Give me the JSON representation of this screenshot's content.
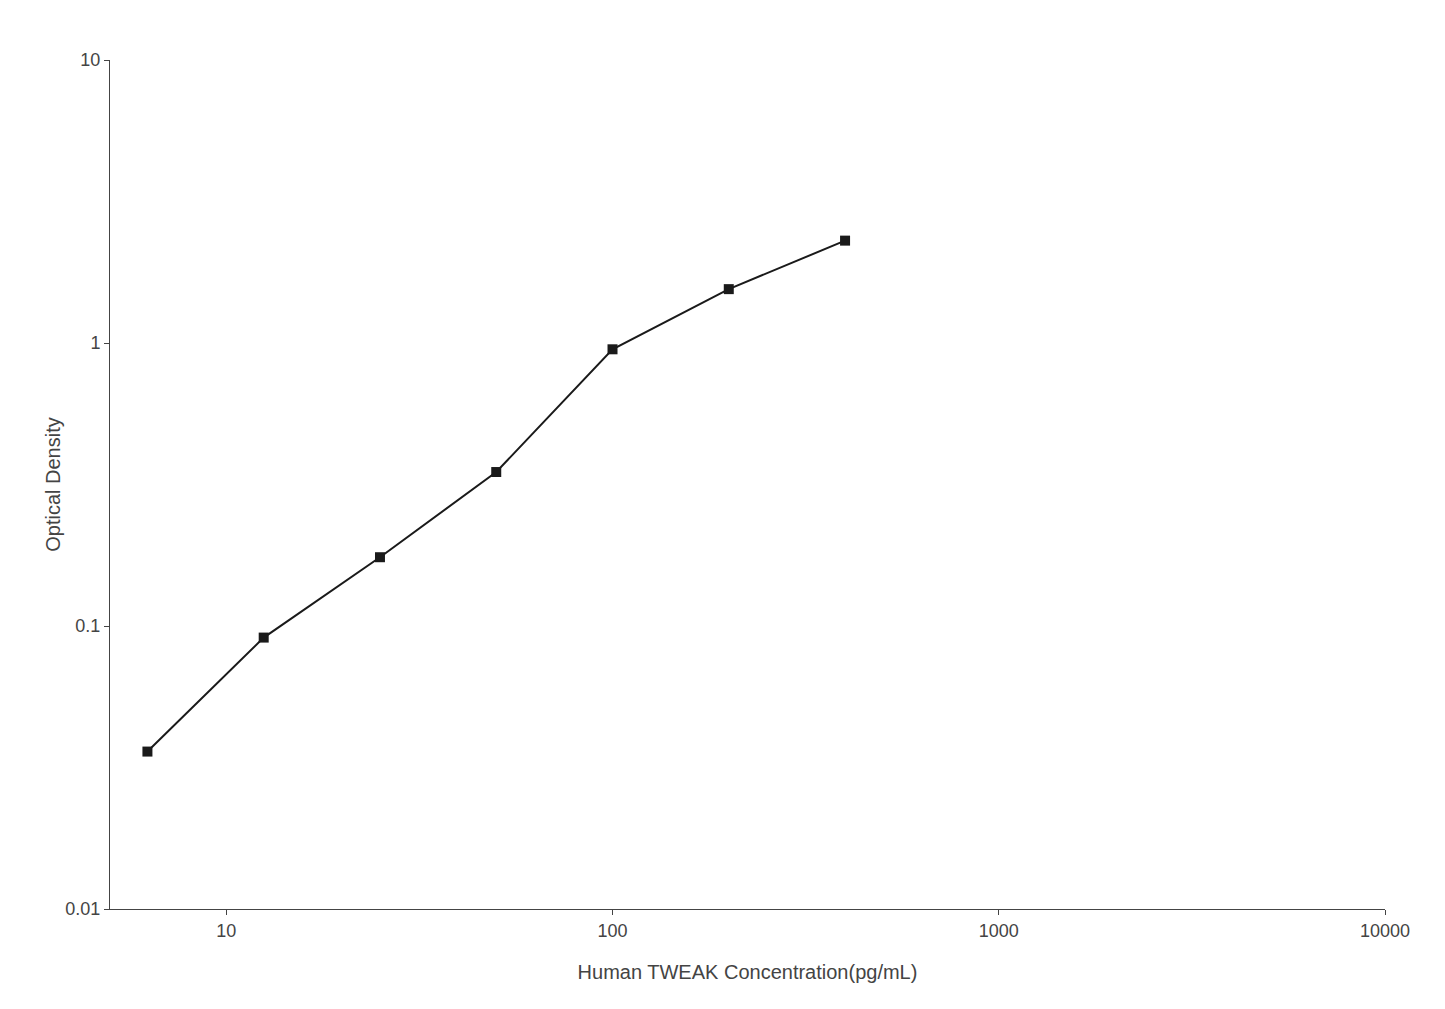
{
  "chart_data": {
    "type": "line",
    "x": [
      6.25,
      12.5,
      25,
      50,
      100,
      200,
      400
    ],
    "values": [
      0.036,
      0.091,
      0.175,
      0.35,
      0.95,
      1.55,
      2.3
    ],
    "xlabel": "Human TWEAK Concentration(pg/mL)",
    "ylabel": "Optical Density",
    "xlim": [
      5,
      10000
    ],
    "ylim": [
      0.01,
      10
    ],
    "xticks": [
      10,
      100,
      1000,
      10000
    ],
    "yticks": [
      0.01,
      0.1,
      1,
      10
    ],
    "log": true,
    "grid": false,
    "color": "#1a1a1a",
    "marker": "square"
  }
}
